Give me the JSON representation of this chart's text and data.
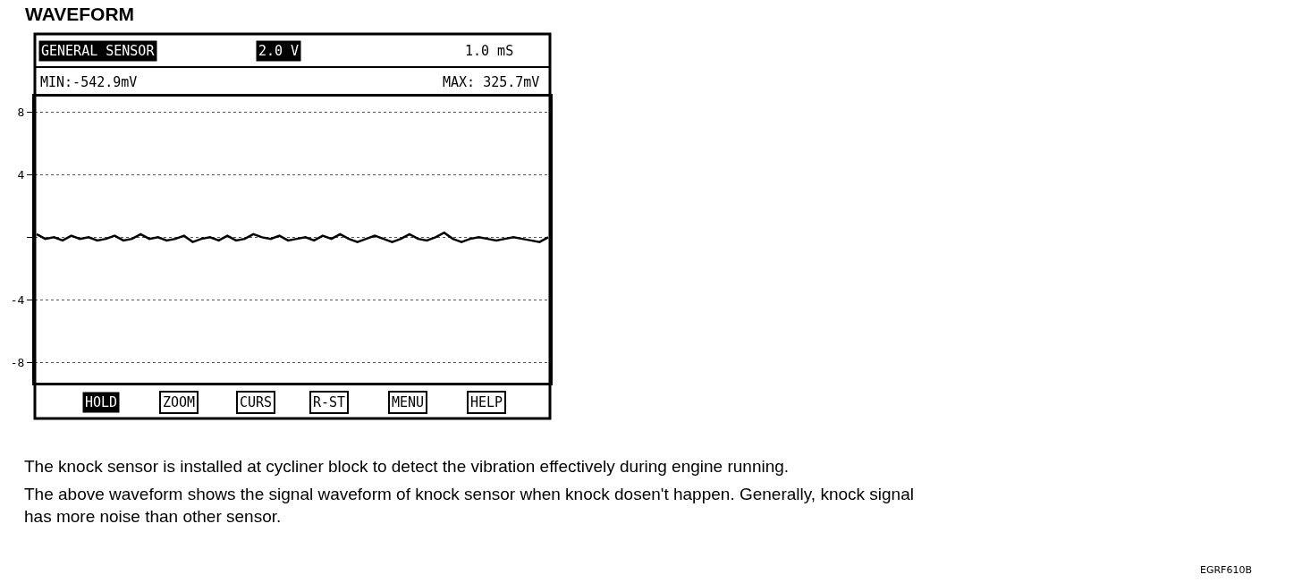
{
  "chart_data": {
    "type": "line",
    "title": "WAVEFORM",
    "categories": [
      null,
      null,
      null,
      null,
      null,
      null,
      null,
      null,
      null,
      null,
      null,
      null,
      null,
      null,
      null,
      null,
      null,
      null,
      null,
      null,
      null,
      null,
      null,
      null,
      null,
      null,
      null,
      null,
      null,
      null,
      null,
      null,
      null,
      null,
      null,
      null,
      null,
      null,
      null,
      null,
      null,
      null,
      null,
      null,
      null,
      null,
      null,
      null,
      null,
      null,
      null,
      null,
      null,
      null,
      null,
      null,
      null,
      null,
      null,
      null
    ],
    "series": [
      {
        "color": "#000000",
        "values": [
          0.2,
          -0.1,
          0.0,
          -0.2,
          0.1,
          -0.1,
          0.0,
          -0.2,
          -0.1,
          0.1,
          -0.2,
          -0.1,
          0.2,
          -0.1,
          0.0,
          -0.2,
          -0.1,
          0.1,
          -0.3,
          -0.1,
          0.0,
          -0.2,
          0.1,
          -0.2,
          -0.1,
          0.2,
          0.0,
          -0.1,
          0.1,
          -0.2,
          -0.1,
          0.0,
          -0.2,
          0.1,
          -0.1,
          0.2,
          -0.1,
          -0.3,
          -0.1,
          0.1,
          -0.1,
          -0.3,
          -0.1,
          0.2,
          -0.1,
          -0.2,
          0.0,
          0.3,
          -0.1,
          -0.3,
          -0.1,
          0.0,
          -0.1,
          -0.2,
          -0.1,
          0.0,
          -0.1,
          -0.2,
          -0.3,
          0.0
        ]
      }
    ],
    "ylim": [
      -9.3,
      9
    ],
    "yticks": [
      8,
      4,
      {
        "value": 0,
        "label": null
      },
      -4,
      -8
    ],
    "grid": "y",
    "marker": "none",
    "line_style": "solid",
    "annotations": [
      "GENERAL SENSOR",
      "2.0 V",
      "1.0 mS",
      "MIN:-542.9mV",
      "MAX: 325.7mV",
      "HOLD",
      "ZOOM",
      "CURS",
      "R-ST",
      "MENU",
      "HELP",
      "The knock sensor is installed at cycliner block to detect the vibration effectively during engine running.",
      "The above waveform shows the signal waveform of knock sensor when knock dosen't happen. Generally, knock signal has more noise than other sensor.",
      "EGRF610B"
    ]
  }
}
